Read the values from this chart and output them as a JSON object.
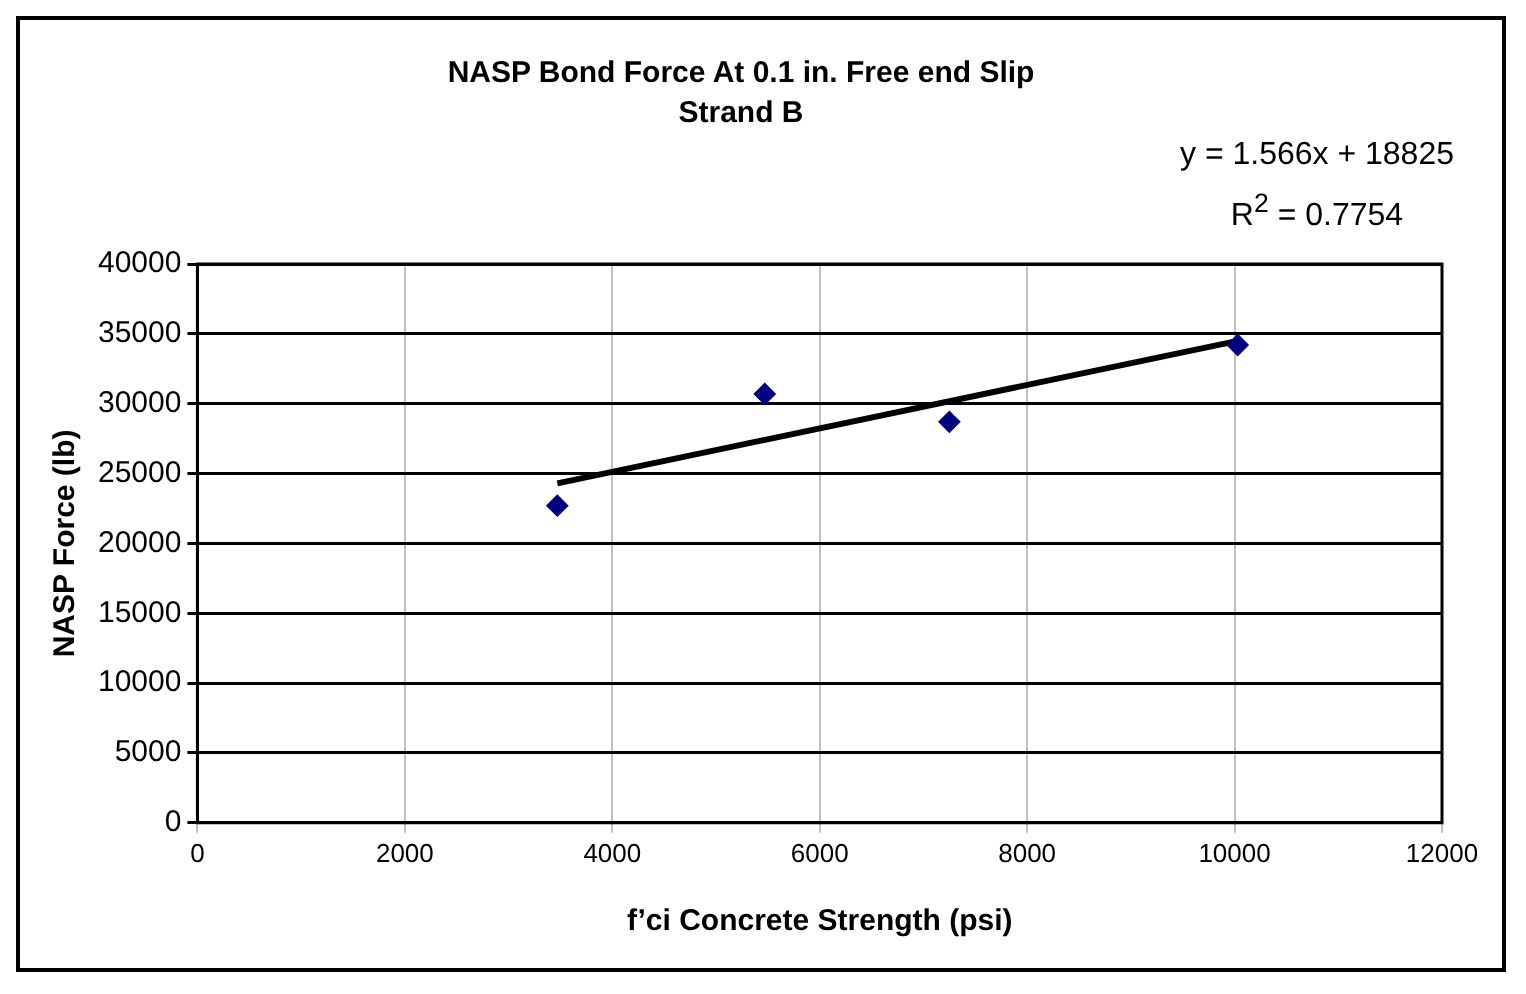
{
  "chart_data": {
    "type": "scatter",
    "title": "NASP Bond Force At 0.1 in. Free end Slip",
    "subtitle": "Strand B",
    "xlabel": "f’ci Concrete Strength (psi)",
    "ylabel": "NASP Force (lb)",
    "annotations": [
      "y = 1.566x + 18825",
      "R$^{2}$ = 0.7754"
    ],
    "series": [
      {
        "color": "#000080",
        "x": [
          3470,
          5470,
          7250,
          10030
        ],
        "values": [
          22700,
          30700,
          28700,
          34200
        ],
        "marker": "diamond"
      },
      {
        "type": "line",
        "color": "#000000",
        "x": [
          3470,
          10030
        ],
        "values": [
          24300,
          34500
        ],
        "marker": "none",
        "line_style": "solid"
      }
    ],
    "xlim": [
      0,
      12000
    ],
    "xticks": [
      0,
      2000,
      4000,
      6000,
      8000,
      10000,
      12000
    ],
    "ylim": [
      0,
      40000
    ],
    "yticks": [
      0,
      5000,
      10000,
      15000,
      20000,
      25000,
      30000,
      35000,
      40000
    ],
    "grid": true
  }
}
